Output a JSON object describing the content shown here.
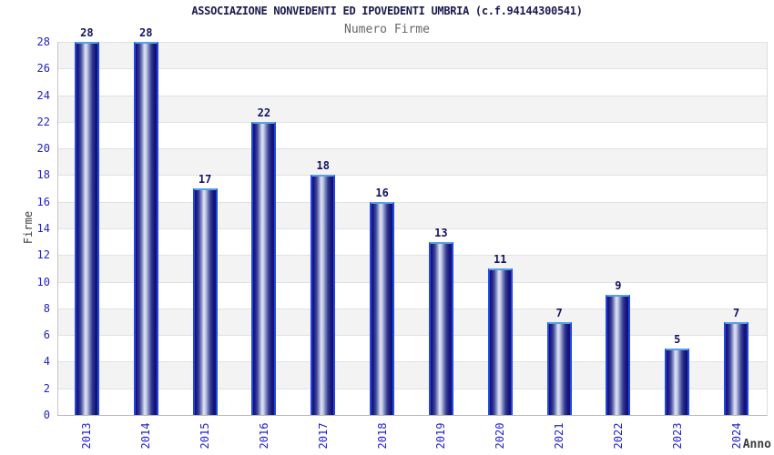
{
  "header": {
    "title": "ASSOCIAZIONE NONVEDENTI ED IPOVEDENTI UMBRIA (c.f.94144300541)",
    "subtitle": "Numero Firme"
  },
  "chart_data": {
    "type": "bar",
    "title": "ASSOCIAZIONE NONVEDENTI ED IPOVEDENTI UMBRIA (c.f.94144300541)",
    "subtitle": "Numero Firme",
    "categories": [
      "2013",
      "2014",
      "2015",
      "2016",
      "2017",
      "2018",
      "2019",
      "2020",
      "2021",
      "2022",
      "2023",
      "2024"
    ],
    "values": [
      28,
      28,
      17,
      22,
      18,
      16,
      13,
      11,
      7,
      9,
      5,
      7
    ],
    "xlabel": "Anno",
    "ylabel": "Firme",
    "ylim": [
      0,
      28
    ],
    "ytick_step": 2,
    "yticks": [
      0,
      2,
      4,
      6,
      8,
      10,
      12,
      14,
      16,
      18,
      20,
      22,
      24,
      26,
      28
    ],
    "grid": "alternating-horizontal-bands",
    "legend": "none",
    "colors": {
      "title_text": "#1a1a4e",
      "subtitle_text": "#666666",
      "tick_text": "#2222cc",
      "bar_value_text": "#14145e",
      "axis_label_text": "#3c3c3c",
      "bar_dark": "#101078",
      "bar_highlight": "#dde1f2",
      "bar_side_border": "#2447e0",
      "bar_top_border": "#55a0e8",
      "band_gray": "#f3f3f3",
      "band_white": "#ffffff"
    }
  }
}
